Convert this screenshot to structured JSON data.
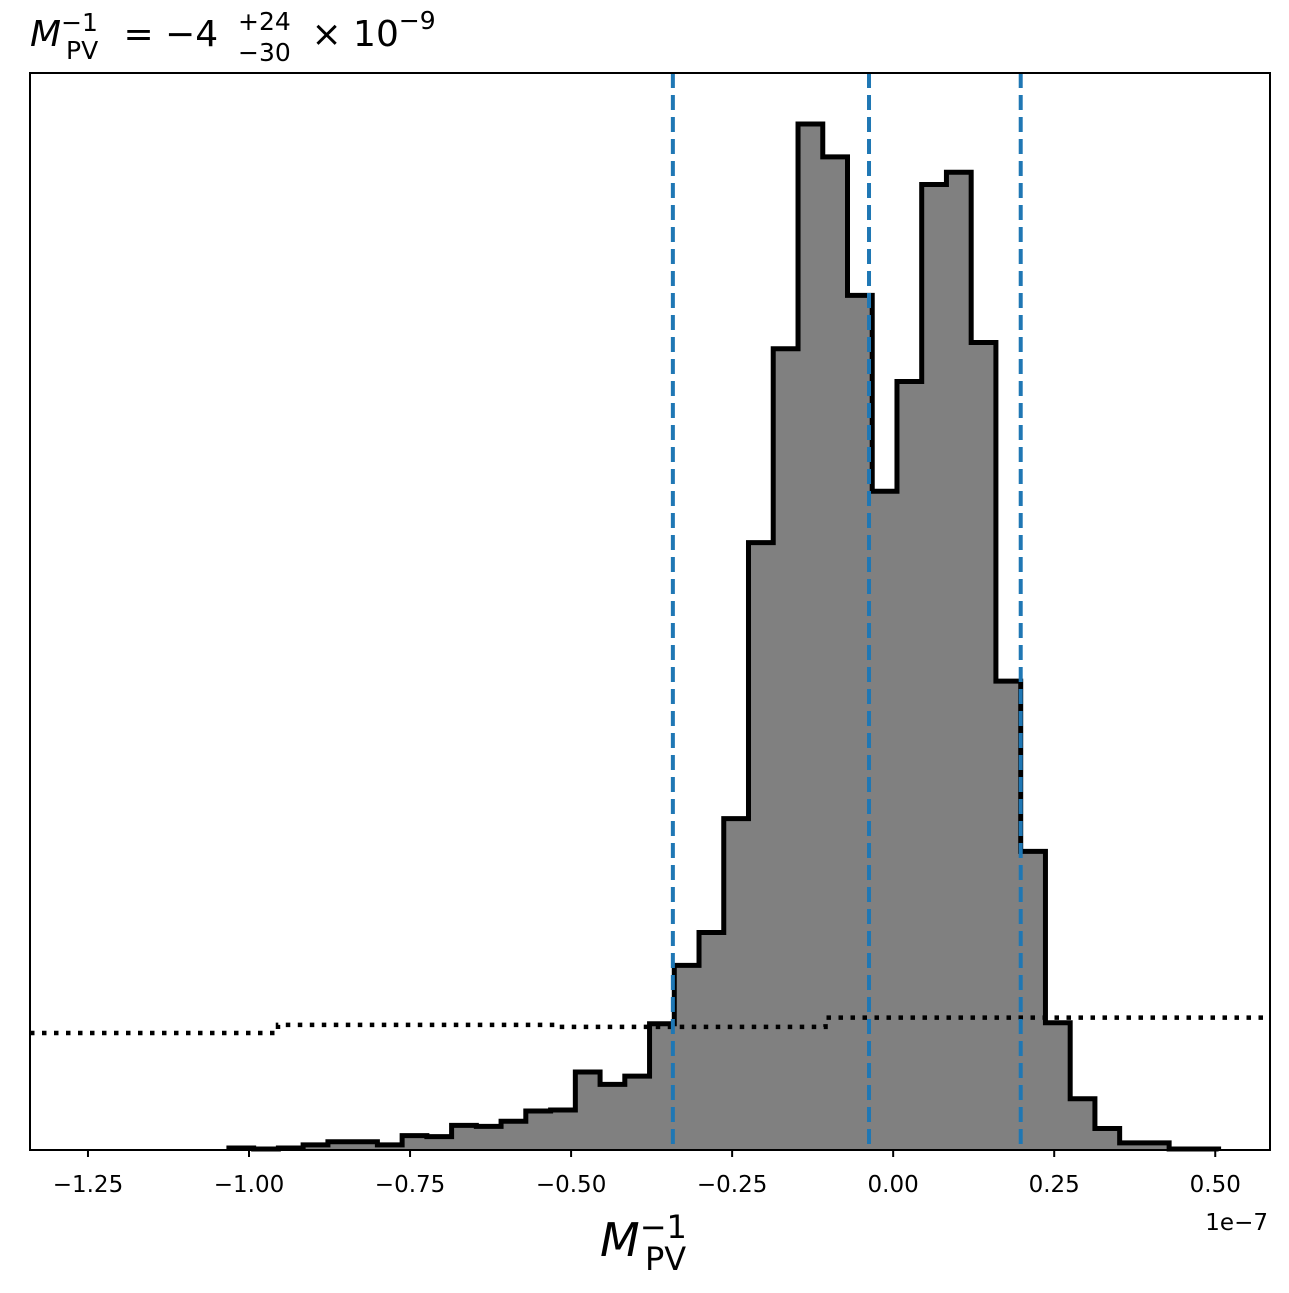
{
  "chart_data": {
    "type": "histogram",
    "title": {
      "symbol": "M",
      "sub": "PV",
      "sup": "−1",
      "equals": " = −4",
      "err_plus": "+24",
      "err_minus": "−30",
      "times": " × 10",
      "exp": "−9"
    },
    "xlabel": {
      "symbol": "M",
      "sub": "PV",
      "sup": "−1"
    },
    "x_offset_label": "1e−7",
    "xlim": [
      -1.34,
      0.585
    ],
    "ylim": [
      0,
      1.0
    ],
    "x_ticks": [
      -1.25,
      -1.0,
      -0.75,
      -0.5,
      -0.25,
      0.0,
      0.25,
      0.5
    ],
    "x_tick_labels": [
      "−1.25",
      "−1.00",
      "−0.75",
      "−0.50",
      "−0.25",
      "0.00",
      "0.25",
      "0.50"
    ],
    "y_ticks_shown": false,
    "histogram": {
      "bin_edges": [
        -1.0312,
        -0.9928,
        -0.9544,
        -0.916,
        -0.8775,
        -0.8391,
        -0.8007,
        -0.7623,
        -0.7239,
        -0.6855,
        -0.6471,
        -0.6087,
        -0.5703,
        -0.5318,
        -0.4934,
        -0.455,
        -0.4166,
        -0.3782,
        -0.3398,
        -0.3014,
        -0.263,
        -0.2246,
        -0.1862,
        -0.1477,
        -0.1093,
        -0.0709,
        -0.0325,
        0.0059,
        0.0443,
        0.0827,
        0.1211,
        0.1595,
        0.198,
        0.2364,
        0.2748,
        0.3132,
        0.3516,
        0.39,
        0.4284,
        0.4668,
        0.5052
      ],
      "counts": [
        0.002,
        0.001,
        0.002,
        0.005,
        0.008,
        0.008,
        0.005,
        0.014,
        0.013,
        0.024,
        0.023,
        0.028,
        0.038,
        0.039,
        0.076,
        0.064,
        0.072,
        0.123,
        0.18,
        0.212,
        0.323,
        0.592,
        0.781,
        1.0,
        0.968,
        0.833,
        0.642,
        0.749,
        0.941,
        0.953,
        0.787,
        0.457,
        0.291,
        0.124,
        0.05,
        0.021,
        0.007,
        0.007,
        0.001,
        0.001
      ],
      "fill_color": "#808080",
      "edge_color": "#000000"
    },
    "prior": {
      "style": "dotted",
      "color": "#000000",
      "segments": [
        {
          "x0": -1.34,
          "x1": -0.955,
          "y": 0.114
        },
        {
          "x0": -0.955,
          "x1": -0.525,
          "y": 0.122
        },
        {
          "x0": -0.525,
          "x1": -0.105,
          "y": 0.12
        },
        {
          "x0": -0.105,
          "x1": 0.585,
          "y": 0.129
        }
      ]
    },
    "vlines": {
      "color": "#1f77b4",
      "style": "dashed",
      "values": [
        -0.342,
        -0.0375,
        0.198
      ]
    }
  }
}
